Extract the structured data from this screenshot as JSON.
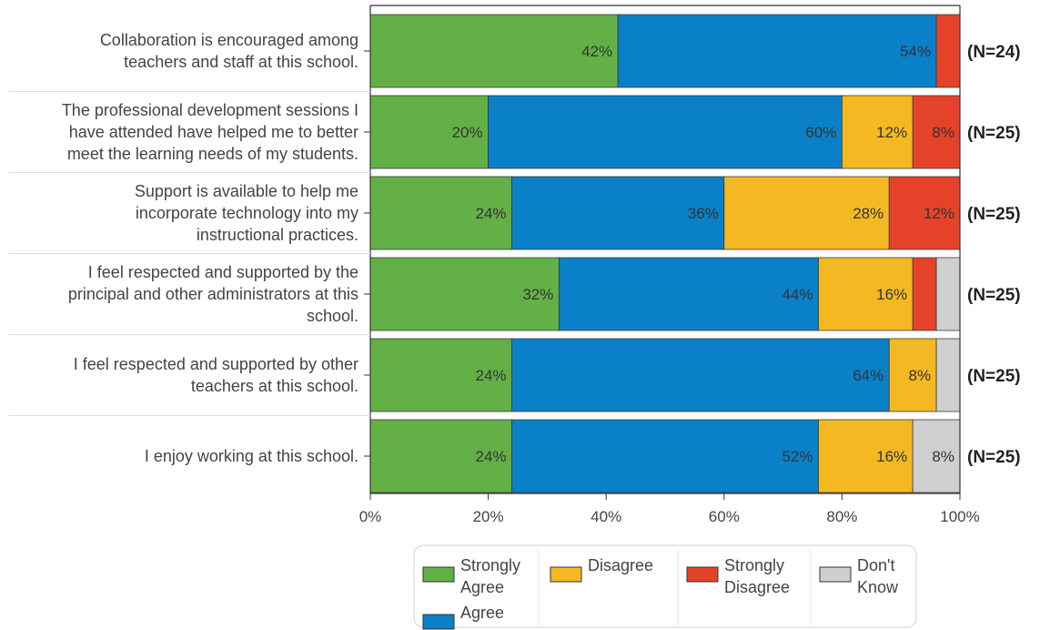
{
  "chart_data": {
    "type": "bar",
    "orientation": "horizontal",
    "stacked": true,
    "categories": [
      [
        "Collaboration is encouraged among",
        "teachers and staff at this school."
      ],
      [
        "The professional development sessions I",
        "have attended have helped me to better",
        "meet the learning needs of my students."
      ],
      [
        "Support is available to help me",
        "incorporate technology into my",
        "instructional practices."
      ],
      [
        "I feel respected and supported by the",
        "principal and other administrators at this",
        "school."
      ],
      [
        "I feel respected and supported by other",
        "teachers at this school."
      ],
      [
        "I enjoy working at this school."
      ]
    ],
    "n_labels": [
      "(N=24)",
      "(N=25)",
      "(N=25)",
      "(N=25)",
      "(N=25)",
      "(N=25)"
    ],
    "series": [
      {
        "name": "Strongly Agree",
        "legend_lines": [
          "Strongly",
          "Agree"
        ],
        "color": "#63b046",
        "values": [
          42,
          20,
          24,
          32,
          24,
          24
        ],
        "labels": [
          "42%",
          "20%",
          "24%",
          "32%",
          "24%",
          "24%"
        ]
      },
      {
        "name": "Agree",
        "legend_lines": [
          "Agree"
        ],
        "color": "#0a80c8",
        "values": [
          54,
          60,
          36,
          44,
          64,
          52
        ],
        "labels": [
          "54%",
          "60%",
          "36%",
          "44%",
          "64%",
          "52%"
        ]
      },
      {
        "name": "Disagree",
        "legend_lines": [
          "Disagree"
        ],
        "color": "#f4b922",
        "values": [
          0,
          12,
          28,
          16,
          8,
          16
        ],
        "labels": [
          "",
          "12%",
          "28%",
          "16%",
          "8%",
          "16%"
        ]
      },
      {
        "name": "Strongly Disagree",
        "legend_lines": [
          "Strongly",
          "Disagree"
        ],
        "color": "#e44329",
        "values": [
          4,
          8,
          12,
          4,
          0,
          0
        ],
        "labels": [
          "",
          "8%",
          "12%",
          "",
          "",
          ""
        ]
      },
      {
        "name": "Don't Know",
        "legend_lines": [
          "Don't",
          "Know"
        ],
        "color": "#cfcfcf",
        "values": [
          0,
          0,
          0,
          4,
          4,
          8
        ],
        "labels": [
          "",
          "",
          "",
          "",
          "",
          "8%"
        ]
      }
    ],
    "xlim": [
      0,
      100
    ],
    "x_ticks": [
      "0%",
      "20%",
      "40%",
      "60%",
      "80%",
      "100%"
    ],
    "legend_position": "bottom"
  }
}
